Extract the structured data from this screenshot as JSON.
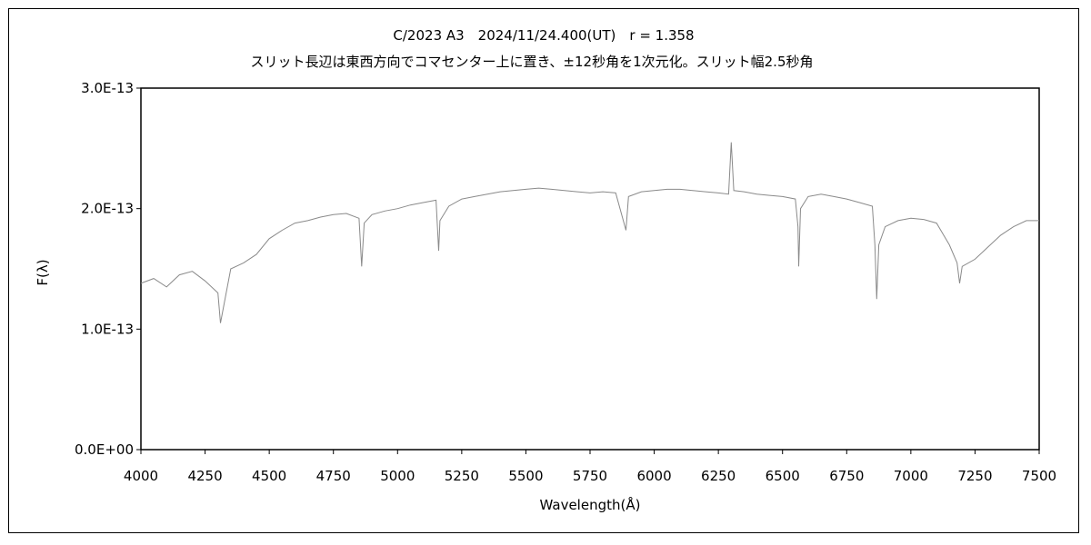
{
  "chart_data": {
    "type": "line",
    "title": "C/2023 A3　2024/11/24.400(UT)　r = 1.358",
    "subtitle": "スリット長辺は東西方向でコマセンター上に置き、±12秒角を1次元化。スリット幅2.5秒角",
    "xlabel": "Wavelength(Å)",
    "ylabel": "F(λ)",
    "xlim": [
      4000,
      7500
    ],
    "ylim": [
      0,
      3e-13
    ],
    "xticks": [
      4000,
      4250,
      4500,
      4750,
      5000,
      5250,
      5500,
      5750,
      6000,
      6250,
      6500,
      6750,
      7000,
      7250,
      7500
    ],
    "xtick_labels": [
      "4000",
      "4250",
      "4500",
      "4750",
      "5000",
      "5250",
      "5500",
      "5750",
      "6000",
      "6250",
      "6500",
      "6750",
      "7000",
      "7250",
      "7500"
    ],
    "yticks": [
      0,
      1e-13,
      2e-13,
      3e-13
    ],
    "ytick_labels": [
      "0.0E+00",
      "1.0E-13",
      "2.0E-13",
      "3.0E-13"
    ],
    "grid": false,
    "legend": "none",
    "line_color": "#8a8a8a",
    "series": [
      {
        "x": [
          4000,
          4050,
          4100,
          4150,
          4200,
          4250,
          4300,
          4310,
          4350,
          4400,
          4450,
          4500,
          4550,
          4600,
          4650,
          4700,
          4750,
          4800,
          4850,
          4860,
          4870,
          4900,
          4950,
          5000,
          5050,
          5100,
          5150,
          5160,
          5165,
          5200,
          5250,
          5300,
          5350,
          5400,
          5450,
          5500,
          5550,
          5600,
          5650,
          5700,
          5750,
          5800,
          5850,
          5890,
          5900,
          5950,
          6000,
          6050,
          6100,
          6150,
          6200,
          6250,
          6290,
          6300,
          6310,
          6350,
          6400,
          6450,
          6500,
          6550,
          6560,
          6563,
          6570,
          6600,
          6650,
          6700,
          6750,
          6800,
          6850,
          6860,
          6867,
          6875,
          6900,
          6950,
          7000,
          7050,
          7100,
          7150,
          7180,
          7190,
          7200,
          7250,
          7300,
          7350,
          7400,
          7450,
          7500
        ],
        "y": [
          1.38e-13,
          1.42e-13,
          1.35e-13,
          1.45e-13,
          1.48e-13,
          1.4e-13,
          1.3e-13,
          1.05e-13,
          1.5e-13,
          1.55e-13,
          1.62e-13,
          1.75e-13,
          1.82e-13,
          1.88e-13,
          1.9e-13,
          1.93e-13,
          1.95e-13,
          1.96e-13,
          1.92e-13,
          1.52e-13,
          1.88e-13,
          1.95e-13,
          1.98e-13,
          2e-13,
          2.03e-13,
          2.05e-13,
          2.07e-13,
          1.65e-13,
          1.9e-13,
          2.02e-13,
          2.08e-13,
          2.1e-13,
          2.12e-13,
          2.14e-13,
          2.15e-13,
          2.16e-13,
          2.17e-13,
          2.16e-13,
          2.15e-13,
          2.14e-13,
          2.13e-13,
          2.14e-13,
          2.13e-13,
          1.82e-13,
          2.1e-13,
          2.14e-13,
          2.15e-13,
          2.16e-13,
          2.16e-13,
          2.15e-13,
          2.14e-13,
          2.13e-13,
          2.12e-13,
          2.55e-13,
          2.15e-13,
          2.14e-13,
          2.12e-13,
          2.11e-13,
          2.1e-13,
          2.08e-13,
          1.85e-13,
          1.52e-13,
          2e-13,
          2.1e-13,
          2.12e-13,
          2.1e-13,
          2.08e-13,
          2.05e-13,
          2.02e-13,
          1.7e-13,
          1.25e-13,
          1.7e-13,
          1.85e-13,
          1.9e-13,
          1.92e-13,
          1.91e-13,
          1.88e-13,
          1.7e-13,
          1.55e-13,
          1.38e-13,
          1.52e-13,
          1.58e-13,
          1.68e-13,
          1.78e-13,
          1.85e-13,
          1.9e-13,
          1.9e-13
        ]
      }
    ]
  }
}
